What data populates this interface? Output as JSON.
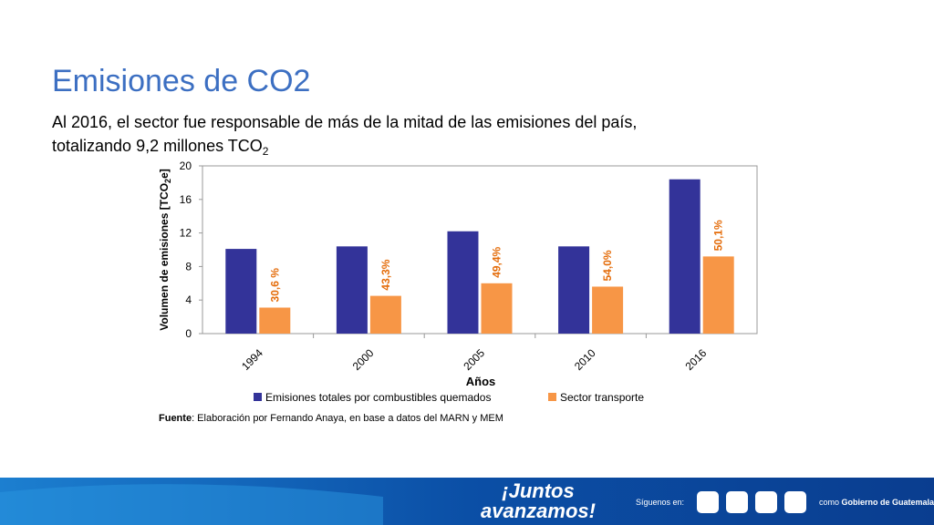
{
  "title": "Emisiones de CO2",
  "subtitle_lines": [
    "Al 2016, el sector fue responsable de más de la mitad de las emisiones del país,",
    "totalizando 9,2 millones TCO"
  ],
  "subtitle_sub": "2",
  "chart_data": {
    "type": "bar",
    "categories": [
      "1994",
      "2000",
      "2005",
      "2010",
      "2016"
    ],
    "series": [
      {
        "name": "Emisiones totales por combustibles quemados",
        "color": "#333399",
        "values": [
          10.1,
          10.4,
          12.2,
          10.4,
          18.4
        ]
      },
      {
        "name": "Sector transporte",
        "color": "#f79646",
        "values": [
          3.1,
          4.5,
          6.0,
          5.6,
          9.2
        ]
      }
    ],
    "annotations": [
      "30,6 %",
      "43,3%",
      "49,4%",
      "54,0%",
      "50,1%"
    ],
    "annotation_color": "#e46c0a",
    "xlabel": "Años",
    "ylabel_parts": [
      "Volumen de emisiones [TCO",
      "2",
      "e]"
    ],
    "ylim": [
      0,
      20
    ],
    "yticks": [
      0,
      4,
      8,
      12,
      16,
      20
    ],
    "grid": false,
    "source_bold": "Fuente",
    "source": ": Elaboración por Fernando Anaya, en base a datos del MARN y MEM"
  },
  "footer": {
    "slogan_1": "¡Juntos",
    "slogan_2": "avanzamos!",
    "follow": "Síguenos en:",
    "as_prefix": "como ",
    "as_name": "Gobierno de Guatemala"
  }
}
